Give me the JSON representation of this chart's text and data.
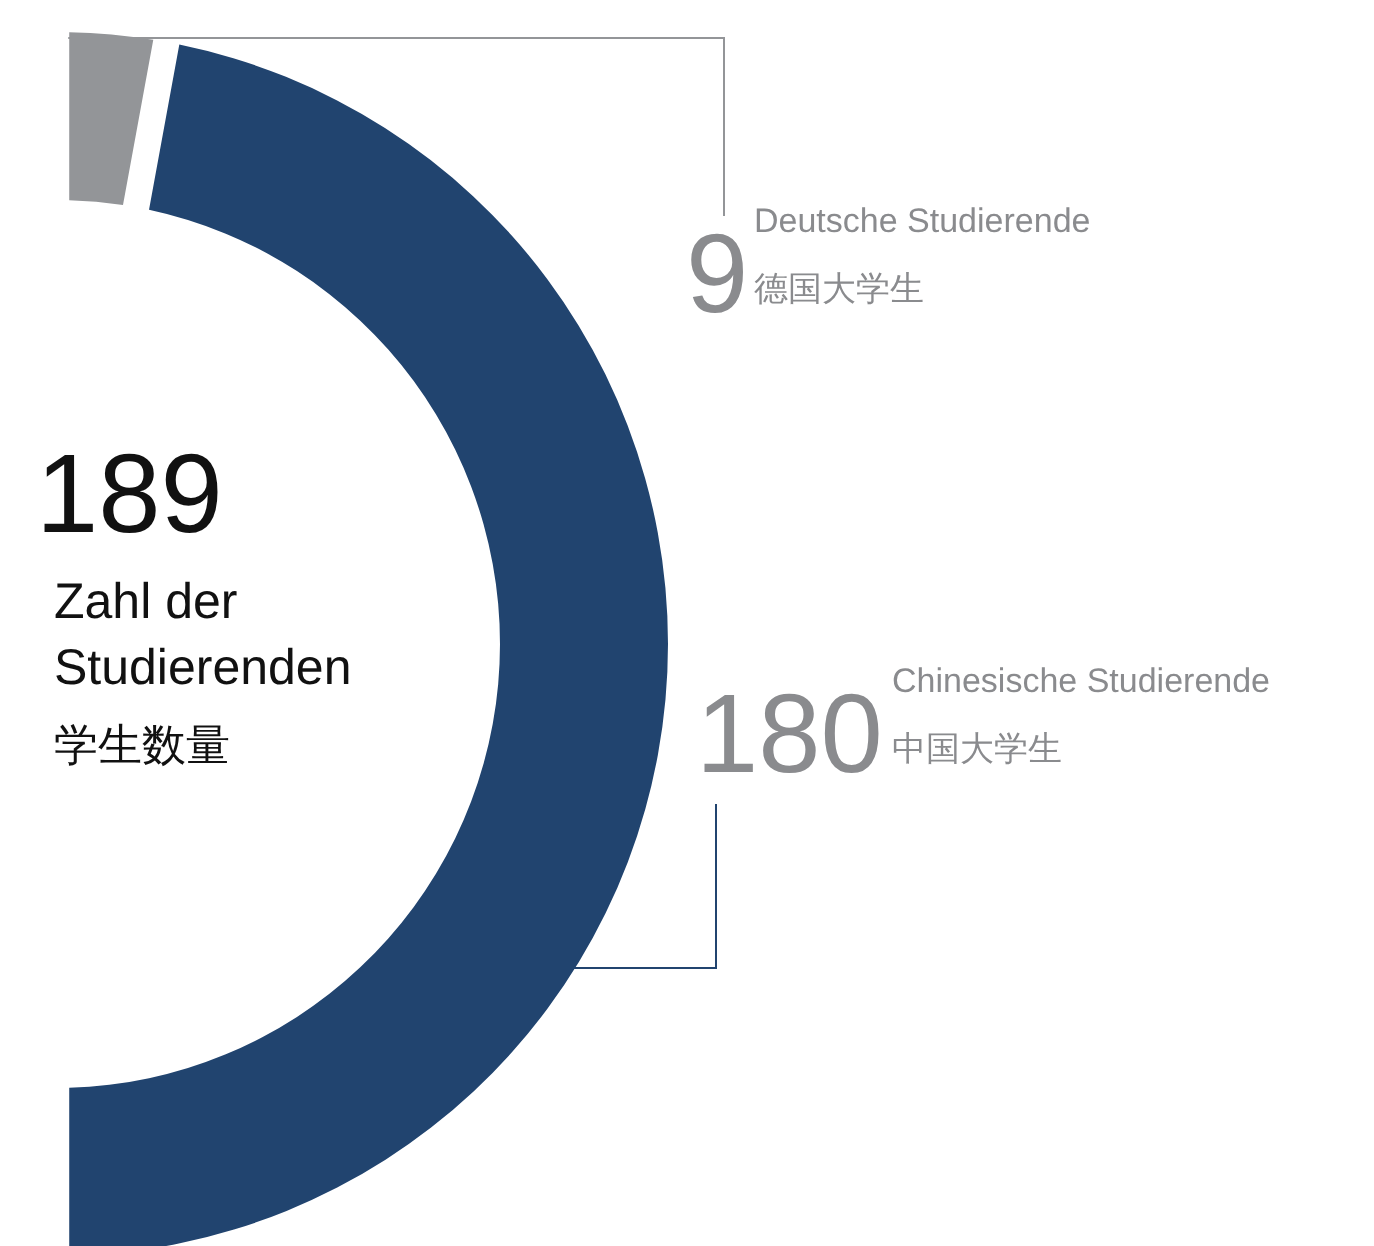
{
  "chart_data": {
    "type": "donut",
    "title": "189",
    "subtitle": "Zahl der Studierenden",
    "annotations": [
      "学生数量"
    ],
    "categories": [
      "Deutsche Studierende 德国大学生",
      "Chinesische Studierende 中国大学生"
    ],
    "values": [
      9,
      180
    ],
    "colors": [
      "#939598",
      "#21446f"
    ],
    "data_labels": true
  }
}
